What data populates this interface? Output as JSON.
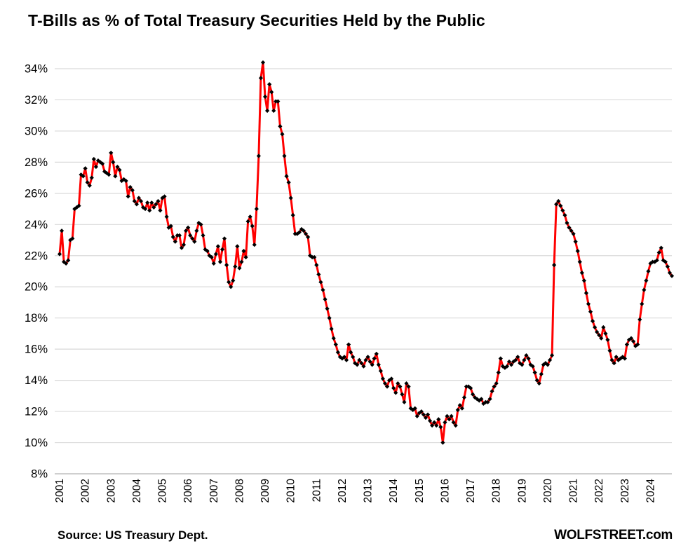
{
  "header": {
    "title": "T-Bills as % of Total Treasury Securities Held by the Public"
  },
  "footer": {
    "source": "Source: US Treasury Dept.",
    "brand": "WOLFSTREET.com"
  },
  "colors": {
    "line": "#FF0000",
    "marker": "#000000",
    "gridline": "#D9D9D9",
    "axis_line": "#BFBFBF",
    "text": "#000000",
    "background": "#FFFFFF"
  },
  "chart_data": {
    "type": "line",
    "title": "T-Bills as % of Total Treasury Securities Held by the Public",
    "frequency": "monthly",
    "x_start": "2001-01",
    "x_end": "2024-11",
    "x_tick_labels": [
      "2001",
      "2002",
      "2003",
      "2004",
      "2005",
      "2006",
      "2007",
      "2008",
      "2009",
      "2010",
      "2011",
      "2012",
      "2013",
      "2014",
      "2015",
      "2016",
      "2017",
      "2018",
      "2019",
      "2020",
      "2021",
      "2022",
      "2023",
      "2024"
    ],
    "y_unit": "%",
    "ylim": [
      8,
      34
    ],
    "y_ticks": [
      34,
      32,
      30,
      28,
      26,
      24,
      22,
      20,
      18,
      16,
      14,
      12,
      10,
      8
    ],
    "grid": "horizontal",
    "legend": "none",
    "marker": "black-diamond",
    "values": [
      22.1,
      23.6,
      21.6,
      21.5,
      21.7,
      23.0,
      23.1,
      25.0,
      25.1,
      25.2,
      27.2,
      27.1,
      27.6,
      26.7,
      26.5,
      27.0,
      28.2,
      27.7,
      28.1,
      28.0,
      27.9,
      27.4,
      27.3,
      27.2,
      28.6,
      28.0,
      27.1,
      27.7,
      27.5,
      26.8,
      26.9,
      26.8,
      25.8,
      26.4,
      26.2,
      25.5,
      25.3,
      25.7,
      25.5,
      25.1,
      25.0,
      25.4,
      24.9,
      25.4,
      25.1,
      25.3,
      25.5,
      24.9,
      25.7,
      25.8,
      24.5,
      23.8,
      23.9,
      23.2,
      22.9,
      23.3,
      23.3,
      22.5,
      22.7,
      23.6,
      23.8,
      23.3,
      23.1,
      22.9,
      23.6,
      24.1,
      24.0,
      23.3,
      22.4,
      22.3,
      22.0,
      21.9,
      21.5,
      22.1,
      22.6,
      21.6,
      22.4,
      23.1,
      21.4,
      20.3,
      20.0,
      20.4,
      21.3,
      22.6,
      21.2,
      21.6,
      22.3,
      21.9,
      24.2,
      24.5,
      23.9,
      22.7,
      25.0,
      28.4,
      33.4,
      34.4,
      32.2,
      31.3,
      33.0,
      32.5,
      31.3,
      31.9,
      31.9,
      30.3,
      29.8,
      28.4,
      27.1,
      26.7,
      25.7,
      24.6,
      23.4,
      23.4,
      23.5,
      23.7,
      23.6,
      23.4,
      23.2,
      22.0,
      21.9,
      21.9,
      21.4,
      20.8,
      20.3,
      19.8,
      19.2,
      18.6,
      18.0,
      17.3,
      16.7,
      16.3,
      15.8,
      15.5,
      15.4,
      15.5,
      15.3,
      16.3,
      15.8,
      15.5,
      15.1,
      15.0,
      15.3,
      15.1,
      14.9,
      15.3,
      15.5,
      15.2,
      15.0,
      15.4,
      15.7,
      15.0,
      14.6,
      14.1,
      13.8,
      13.6,
      14.0,
      14.1,
      13.5,
      13.2,
      13.8,
      13.6,
      13.1,
      12.6,
      13.8,
      13.6,
      12.2,
      12.1,
      12.2,
      11.7,
      11.9,
      12.0,
      11.8,
      11.6,
      11.8,
      11.4,
      11.1,
      11.3,
      11.1,
      11.5,
      11.0,
      10.0,
      11.3,
      11.7,
      11.5,
      11.7,
      11.3,
      11.1,
      12.1,
      12.4,
      12.2,
      12.9,
      13.6,
      13.6,
      13.5,
      13.1,
      12.9,
      12.8,
      12.7,
      12.8,
      12.5,
      12.6,
      12.6,
      12.8,
      13.3,
      13.6,
      13.8,
      14.5,
      15.4,
      14.9,
      14.8,
      14.9,
      15.2,
      15.0,
      15.2,
      15.3,
      15.5,
      15.1,
      15.0,
      15.3,
      15.6,
      15.4,
      15.0,
      14.9,
      14.5,
      14.0,
      13.8,
      14.4,
      15.0,
      15.1,
      15.0,
      15.3,
      15.6,
      21.4,
      25.3,
      25.5,
      25.2,
      24.9,
      24.6,
      24.1,
      23.8,
      23.6,
      23.4,
      22.9,
      22.3,
      21.6,
      20.9,
      20.4,
      19.6,
      18.9,
      18.4,
      17.8,
      17.4,
      17.1,
      16.9,
      16.7,
      17.4,
      17.0,
      16.6,
      15.9,
      15.3,
      15.1,
      15.5,
      15.3,
      15.4,
      15.5,
      15.4,
      16.3,
      16.6,
      16.7,
      16.5,
      16.2,
      16.3,
      17.9,
      18.9,
      19.8,
      20.4,
      21.0,
      21.5,
      21.6,
      21.6,
      21.7,
      22.2,
      22.5,
      21.7,
      21.6,
      21.3,
      20.9,
      20.7
    ]
  }
}
